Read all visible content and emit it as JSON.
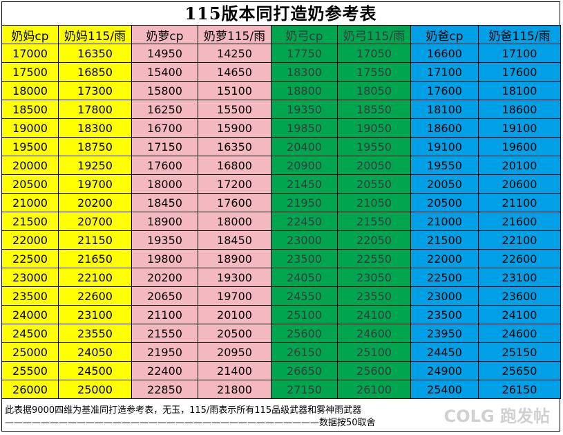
{
  "title": "115版本同打造奶参考表",
  "headers": [
    "奶妈cp",
    "奶妈115/雨",
    "奶萝cp",
    "奶萝115/雨",
    "奶弓cp",
    "奶弓115/雨",
    "奶爸cp",
    "奶爸115/雨"
  ],
  "column_colors": [
    "#ffff00",
    "#f4b8c0",
    "#00a550",
    "#00a0e6"
  ],
  "rows": [
    [
      "17000",
      "16350",
      "14950",
      "14250",
      "17750",
      "17050",
      "16600",
      "17100"
    ],
    [
      "17500",
      "16850",
      "15400",
      "14650",
      "18300",
      "17550",
      "17100",
      "17600"
    ],
    [
      "18000",
      "17300",
      "15800",
      "15100",
      "18800",
      "18050",
      "17600",
      "18100"
    ],
    [
      "18500",
      "17800",
      "16250",
      "15500",
      "19350",
      "18550",
      "18100",
      "18600"
    ],
    [
      "19000",
      "18300",
      "16700",
      "15900",
      "19850",
      "19050",
      "18600",
      "19100"
    ],
    [
      "19500",
      "18750",
      "17150",
      "16350",
      "20400",
      "19550",
      "19100",
      "19600"
    ],
    [
      "20000",
      "19250",
      "17600",
      "16800",
      "20900",
      "20050",
      "19550",
      "20100"
    ],
    [
      "20500",
      "19700",
      "18000",
      "17200",
      "21450",
      "20550",
      "20050",
      "20600"
    ],
    [
      "21000",
      "20200",
      "18450",
      "17600",
      "21950",
      "21050",
      "20500",
      "21100"
    ],
    [
      "21500",
      "20700",
      "18900",
      "18000",
      "22450",
      "21550",
      "21000",
      "21600"
    ],
    [
      "22000",
      "21150",
      "19350",
      "18450",
      "23000",
      "22050",
      "21500",
      "22100"
    ],
    [
      "22500",
      "21650",
      "19800",
      "18900",
      "23500",
      "22550",
      "22000",
      "22600"
    ],
    [
      "23000",
      "22100",
      "20200",
      "19300",
      "24050",
      "23050",
      "22500",
      "23100"
    ],
    [
      "23500",
      "22600",
      "20650",
      "19700",
      "24550",
      "23550",
      "23000",
      "23600"
    ],
    [
      "24000",
      "23100",
      "21100",
      "20100",
      "25100",
      "24100",
      "23500",
      "24100"
    ],
    [
      "24500",
      "23550",
      "21550",
      "20500",
      "25600",
      "24600",
      "23950",
      "24600"
    ],
    [
      "25000",
      "24050",
      "21950",
      "20950",
      "26150",
      "25100",
      "24450",
      "25150"
    ],
    [
      "25500",
      "24500",
      "22400",
      "21400",
      "26650",
      "25600",
      "24900",
      "25650"
    ],
    [
      "26000",
      "25000",
      "22850",
      "21800",
      "27150",
      "26100",
      "25400",
      "26150"
    ]
  ],
  "footer": {
    "line1": "此表据9000四维为基准同打造参考表，无玉，115/雨表示所有115品级武器和雾神雨武器",
    "line2": "———————————————————————————————————数据按50取舍"
  },
  "watermark": "COLG 跑发帖"
}
